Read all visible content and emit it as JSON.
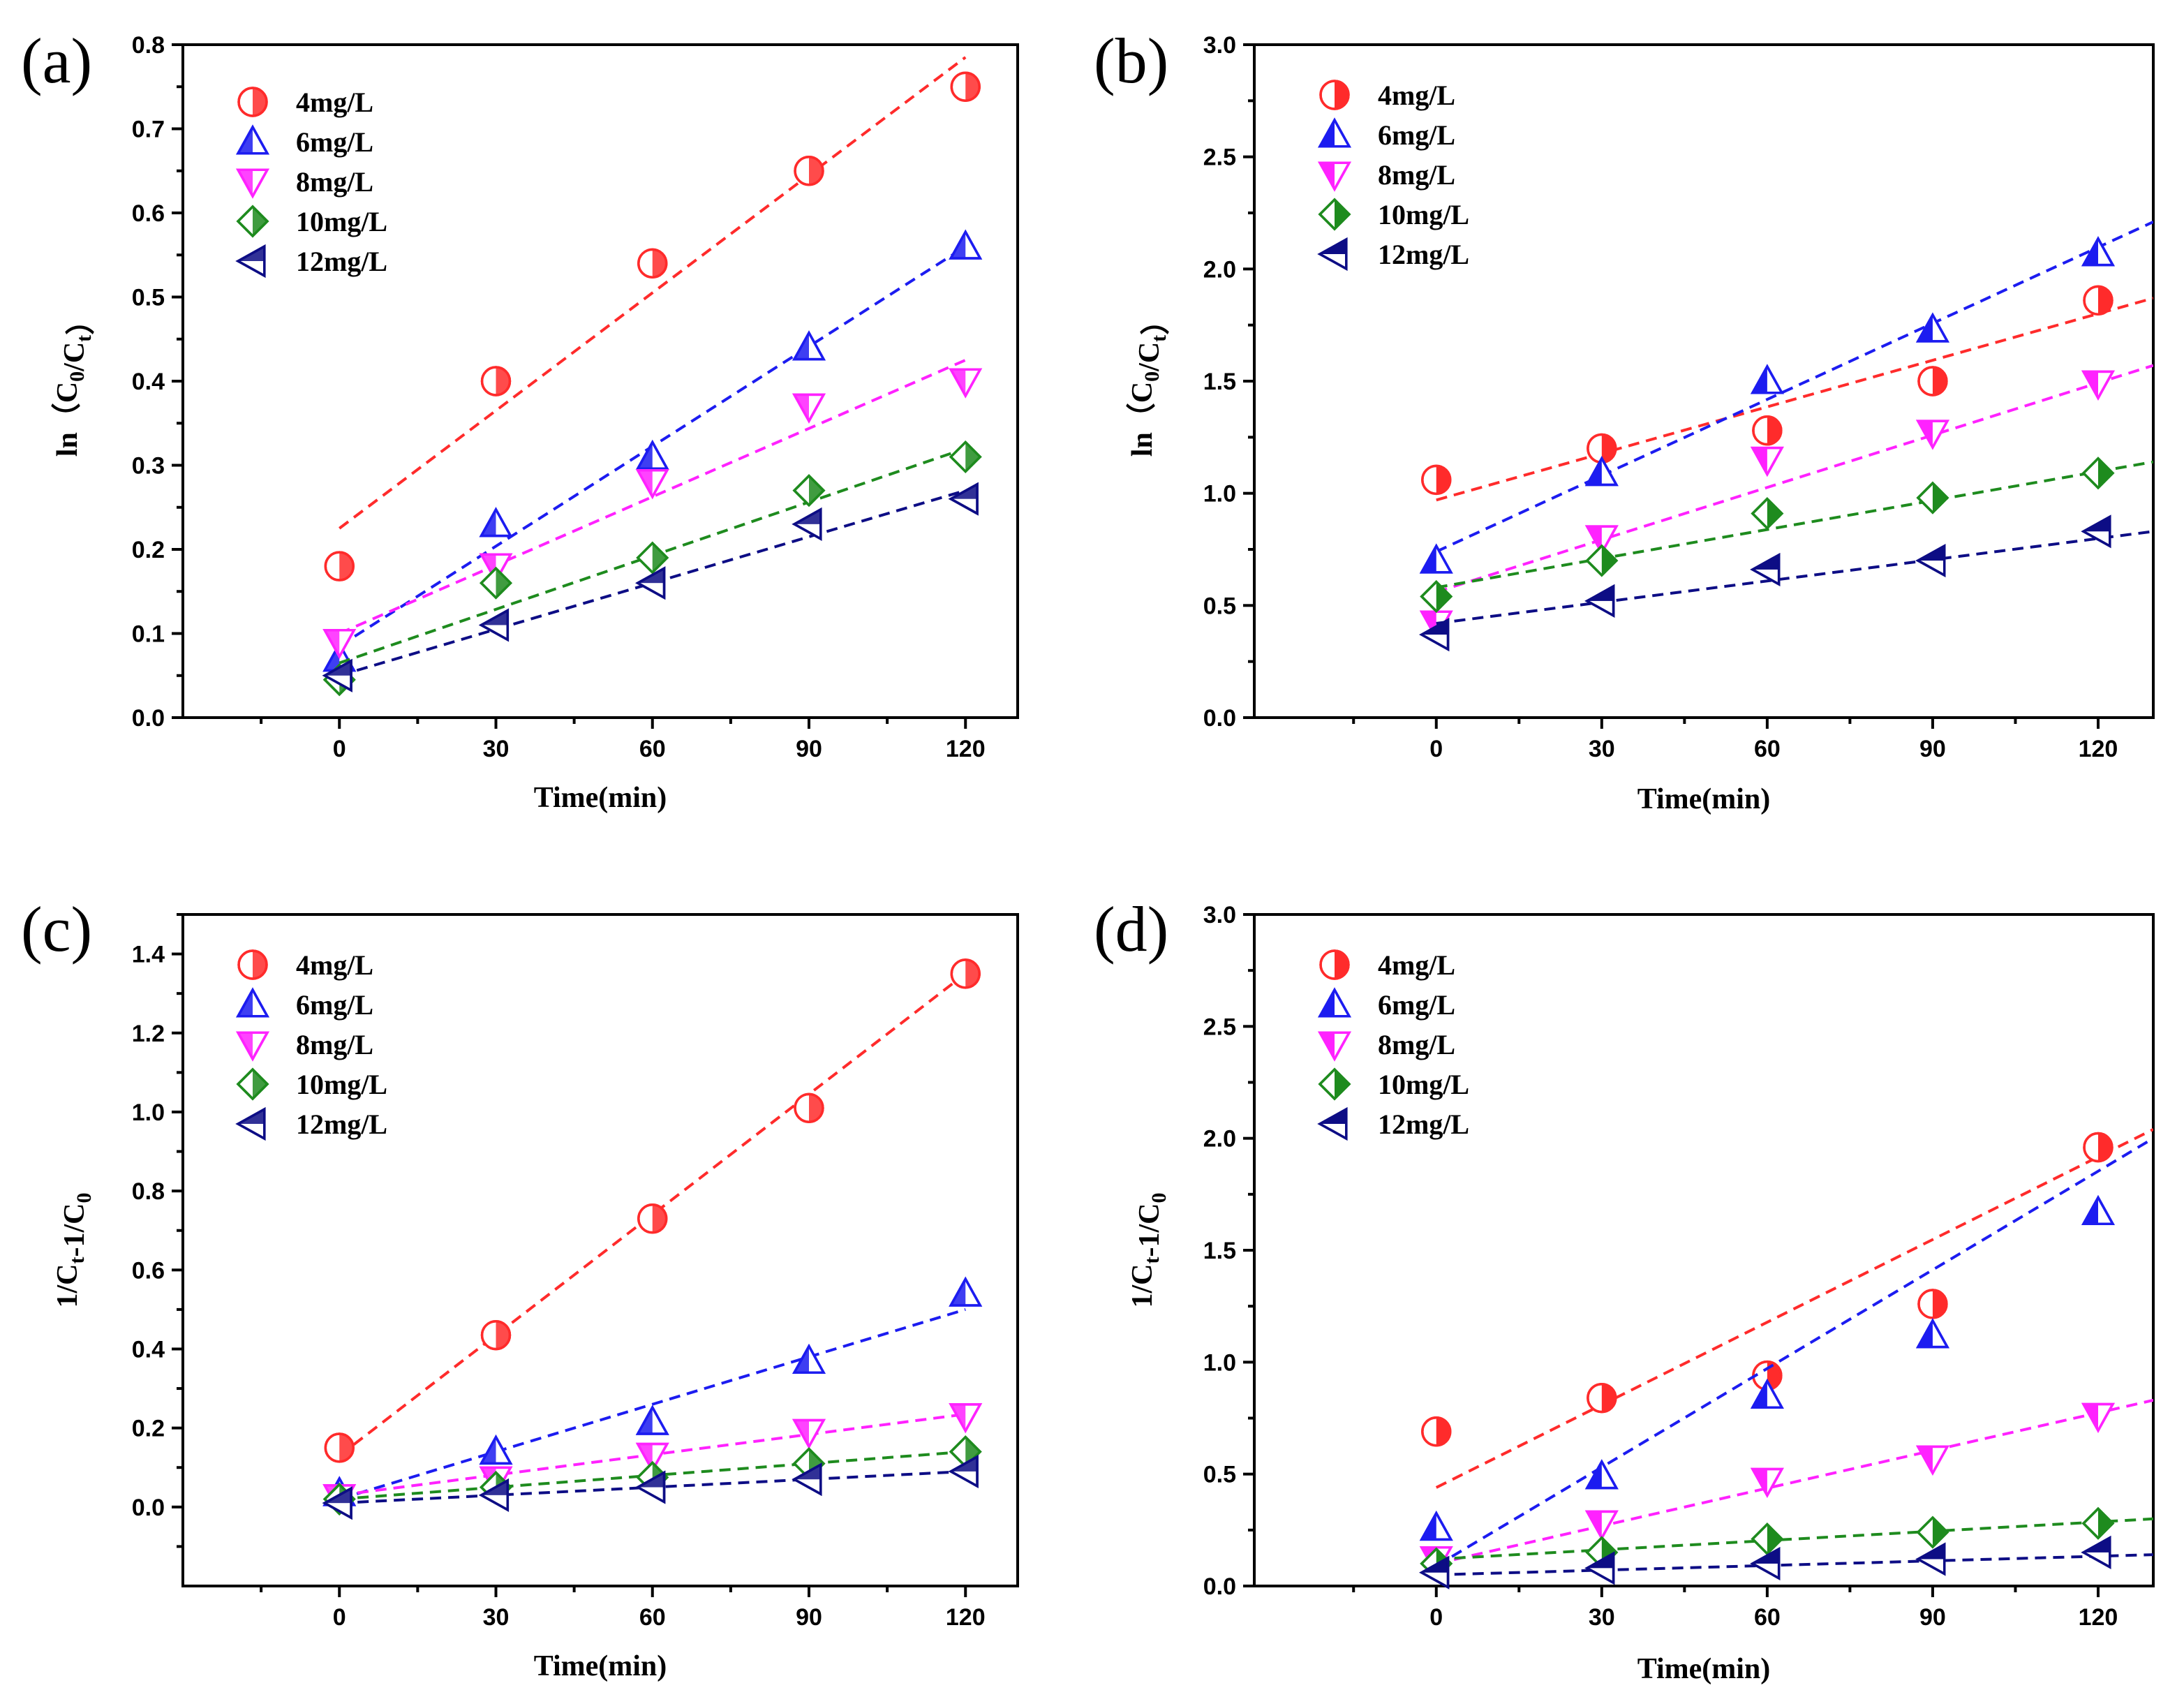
{
  "figure": {
    "panels": [
      "a",
      "b",
      "c",
      "d"
    ]
  },
  "chart_data": [
    {
      "id": "a",
      "type": "scatter",
      "panel_label": "(a)",
      "xlabel": "Time(min)",
      "ylabel": "ln（C0/Ct）",
      "ylabel_parts": {
        "prefix": "ln（C",
        "sub1": "0",
        "mid": "/C",
        "sub2": "t",
        "suffix": "）"
      },
      "xlim": [
        -30,
        130
      ],
      "ylim": [
        0,
        0.8
      ],
      "xticks": [
        0,
        30,
        60,
        90,
        120
      ],
      "xtick_labels": [
        "0",
        "30",
        "60",
        "90",
        "120"
      ],
      "yticks": [
        0,
        0.1,
        0.2,
        0.3,
        0.4,
        0.5,
        0.6,
        0.7,
        0.8
      ],
      "ytick_labels": [
        "0.0",
        "0.1",
        "0.2",
        "0.3",
        "0.4",
        "0.5",
        "0.6",
        "0.7",
        "0.8"
      ],
      "x": [
        0,
        30,
        60,
        90,
        120
      ],
      "legend_position": "top-left",
      "series": [
        {
          "name": "4mg/L",
          "values": [
            0.18,
            0.4,
            0.54,
            0.65,
            0.75
          ],
          "fit": [
            0,
            0.225,
            120,
            0.785
          ],
          "color": "#ff2b2b",
          "marker": "circle",
          "style": "hollow"
        },
        {
          "name": "6mg/L",
          "values": [
            0.07,
            0.23,
            0.31,
            0.44,
            0.56
          ],
          "fit": [
            0,
            0.085,
            120,
            0.56
          ],
          "color": "#1c1cf0",
          "marker": "triangle-up",
          "style": "hollow"
        },
        {
          "name": "8mg/L",
          "values": [
            0.09,
            0.18,
            0.28,
            0.37,
            0.4
          ],
          "fit": [
            0,
            0.1,
            120,
            0.425
          ],
          "color": "#ff22ff",
          "marker": "triangle-down",
          "style": "hollow"
        },
        {
          "name": "10mg/L",
          "values": [
            0.045,
            0.16,
            0.19,
            0.27,
            0.31
          ],
          "fit": [
            0,
            0.065,
            120,
            0.32
          ],
          "color": "#1e8b1e",
          "marker": "diamond",
          "style": "hollow"
        },
        {
          "name": "12mg/L",
          "values": [
            0.05,
            0.11,
            0.16,
            0.23,
            0.26
          ],
          "fit": [
            0,
            0.05,
            120,
            0.27
          ],
          "color": "#0d0d85",
          "marker": "triangle-left",
          "style": "hollow"
        }
      ]
    },
    {
      "id": "b",
      "type": "scatter",
      "panel_label": "(b)",
      "xlabel": "Time(min)",
      "ylabel": "ln（C0/Ct）",
      "ylabel_parts": {
        "prefix": "ln（C",
        "sub1": "0",
        "mid": "/C",
        "sub2": "t",
        "suffix": "）"
      },
      "xlim": [
        -33,
        130
      ],
      "ylim": [
        0,
        3.0
      ],
      "xticks": [
        0,
        30,
        60,
        90,
        120
      ],
      "xtick_labels": [
        "0",
        "30",
        "60",
        "90",
        "120"
      ],
      "yticks": [
        0,
        0.5,
        1.0,
        1.5,
        2.0,
        2.5,
        3.0
      ],
      "ytick_labels": [
        "0.0",
        "0.5",
        "1.0",
        "1.5",
        "2.0",
        "2.5",
        "3.0"
      ],
      "x": [
        0,
        30,
        60,
        90,
        120
      ],
      "legend_position": "top-left",
      "series": [
        {
          "name": "4mg/L",
          "values": [
            1.06,
            1.2,
            1.28,
            1.5,
            1.86
          ],
          "fit": [
            0,
            0.97,
            130,
            1.87
          ],
          "color": "#ff2b2b",
          "marker": "circle",
          "style": "solid"
        },
        {
          "name": "6mg/L",
          "values": [
            0.7,
            1.09,
            1.5,
            1.73,
            2.07
          ],
          "fit": [
            0,
            0.74,
            130,
            2.21
          ],
          "color": "#1c1cf0",
          "marker": "triangle-up",
          "style": "solid"
        },
        {
          "name": "8mg/L",
          "values": [
            0.42,
            0.8,
            1.15,
            1.27,
            1.49
          ],
          "fit": [
            0,
            0.56,
            130,
            1.57
          ],
          "color": "#ff22ff",
          "marker": "triangle-down",
          "style": "solid"
        },
        {
          "name": "10mg/L",
          "values": [
            0.54,
            0.7,
            0.91,
            0.98,
            1.09
          ],
          "fit": [
            0,
            0.58,
            130,
            1.14
          ],
          "color": "#1e8b1e",
          "marker": "diamond",
          "style": "solid"
        },
        {
          "name": "12mg/L",
          "values": [
            0.37,
            0.52,
            0.66,
            0.7,
            0.83
          ],
          "fit": [
            0,
            0.42,
            130,
            0.83
          ],
          "color": "#0d0d85",
          "marker": "triangle-left",
          "style": "solid"
        }
      ]
    },
    {
      "id": "c",
      "type": "scatter",
      "panel_label": "(c)",
      "xlabel": "Time(min)",
      "ylabel": "1/Ct-1/C0",
      "ylabel_parts": {
        "prefix": "1/C",
        "sub1": "t",
        "mid": "-1/C",
        "sub2": "0",
        "suffix": ""
      },
      "xlim": [
        -30,
        130
      ],
      "ylim": [
        -0.2,
        1.5
      ],
      "xticks": [
        0,
        30,
        60,
        90,
        120
      ],
      "xtick_labels": [
        "0",
        "30",
        "60",
        "90",
        "120"
      ],
      "yticks": [
        0,
        0.2,
        0.4,
        0.6,
        0.8,
        1.0,
        1.2,
        1.4
      ],
      "ytick_labels": [
        "0.0",
        "0.2",
        "0.4",
        "0.6",
        "0.8",
        "1.0",
        "1.2",
        "1.4"
      ],
      "x": [
        0,
        30,
        60,
        90,
        120
      ],
      "legend_position": "top-left",
      "series": [
        {
          "name": "4mg/L",
          "values": [
            0.15,
            0.435,
            0.73,
            1.01,
            1.35
          ],
          "fit": [
            0,
            0.13,
            120,
            1.35
          ],
          "color": "#ff2b2b",
          "marker": "circle",
          "style": "hollow"
        },
        {
          "name": "6mg/L",
          "values": [
            0.035,
            0.14,
            0.215,
            0.37,
            0.54
          ],
          "fit": [
            0,
            0.02,
            120,
            0.5
          ],
          "color": "#1c1cf0",
          "marker": "triangle-up",
          "style": "hollow"
        },
        {
          "name": "8mg/L",
          "values": [
            0.025,
            0.07,
            0.13,
            0.19,
            0.23
          ],
          "fit": [
            0,
            0.03,
            120,
            0.235
          ],
          "color": "#ff22ff",
          "marker": "triangle-down",
          "style": "hollow"
        },
        {
          "name": "10mg/L",
          "values": [
            0.02,
            0.05,
            0.075,
            0.11,
            0.14
          ],
          "fit": [
            0,
            0.02,
            120,
            0.14
          ],
          "color": "#1e8b1e",
          "marker": "diamond",
          "style": "hollow"
        },
        {
          "name": "12mg/L",
          "values": [
            0.01,
            0.03,
            0.05,
            0.07,
            0.09
          ],
          "fit": [
            0,
            0.01,
            120,
            0.09
          ],
          "color": "#0d0d85",
          "marker": "triangle-left",
          "style": "hollow"
        }
      ]
    },
    {
      "id": "d",
      "type": "scatter",
      "panel_label": "(d)",
      "xlabel": "Time(min)",
      "ylabel": "1/Ct-1/C0",
      "ylabel_parts": {
        "prefix": "1/C",
        "sub1": "t",
        "mid": "-1/C",
        "sub2": "0",
        "suffix": ""
      },
      "xlim": [
        -33,
        130
      ],
      "ylim": [
        0,
        3.0
      ],
      "xticks": [
        0,
        30,
        60,
        90,
        120
      ],
      "xtick_labels": [
        "0",
        "30",
        "60",
        "90",
        "120"
      ],
      "yticks": [
        0,
        0.5,
        1.0,
        1.5,
        2.0,
        2.5,
        3.0
      ],
      "ytick_labels": [
        "0.0",
        "0.5",
        "1.0",
        "1.5",
        "2.0",
        "2.5",
        "3.0"
      ],
      "x": [
        0,
        30,
        60,
        90,
        120
      ],
      "legend_position": "top-left",
      "series": [
        {
          "name": "4mg/L",
          "values": [
            0.69,
            0.84,
            0.94,
            1.26,
            1.96
          ],
          "fit": [
            0,
            0.44,
            130,
            2.04
          ],
          "color": "#ff2b2b",
          "marker": "circle",
          "style": "solid"
        },
        {
          "name": "6mg/L",
          "values": [
            0.26,
            0.49,
            0.85,
            1.12,
            1.67
          ],
          "fit": [
            0,
            0.09,
            130,
            2.0
          ],
          "color": "#1c1cf0",
          "marker": "triangle-up",
          "style": "solid"
        },
        {
          "name": "8mg/L",
          "values": [
            0.12,
            0.28,
            0.47,
            0.57,
            0.76
          ],
          "fit": [
            0,
            0.1,
            130,
            0.83
          ],
          "color": "#ff22ff",
          "marker": "triangle-down",
          "style": "solid"
        },
        {
          "name": "10mg/L",
          "values": [
            0.1,
            0.15,
            0.21,
            0.24,
            0.28
          ],
          "fit": [
            0,
            0.12,
            130,
            0.3
          ],
          "color": "#1e8b1e",
          "marker": "diamond",
          "style": "solid"
        },
        {
          "name": "12mg/L",
          "values": [
            0.06,
            0.08,
            0.1,
            0.12,
            0.15
          ],
          "fit": [
            0,
            0.05,
            130,
            0.14
          ],
          "color": "#0d0d85",
          "marker": "triangle-left",
          "style": "solid"
        }
      ]
    }
  ]
}
